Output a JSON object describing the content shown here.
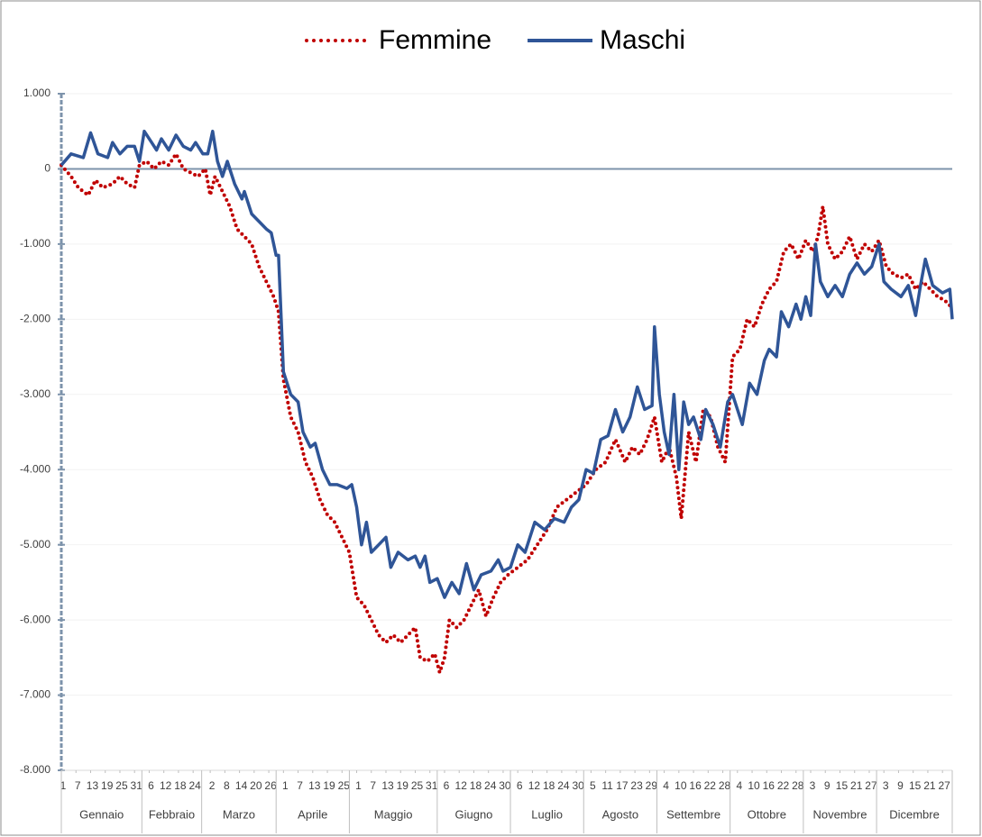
{
  "chart_data": {
    "type": "line",
    "legend": "top",
    "ylim": [
      -8000,
      1000
    ],
    "yticks": [
      {
        "value": 1000,
        "label": "1.000"
      },
      0,
      {
        "value": -1000,
        "label": "-1.000"
      },
      {
        "value": -2000,
        "label": "-2.000"
      },
      {
        "value": -3000,
        "label": "-3.000"
      },
      {
        "value": -4000,
        "label": "-4.000"
      },
      {
        "value": -5000,
        "label": "-5.000"
      },
      {
        "value": -6000,
        "label": "-6.000"
      },
      {
        "value": -7000,
        "label": "-7.000"
      },
      {
        "value": -8000,
        "label": "-8.000"
      }
    ],
    "xlim": [
      1,
      366
    ],
    "xtick_groups": [
      {
        "month": "Gennaio",
        "ticks": [
          {
            "value": 1,
            "label": "1"
          },
          {
            "value": 7,
            "label": "7"
          },
          {
            "value": 13,
            "label": "13"
          },
          {
            "value": 19,
            "label": "19"
          },
          {
            "value": 25,
            "label": "25"
          },
          {
            "value": 31,
            "label": "31"
          }
        ]
      },
      {
        "month": "Febbraio",
        "ticks": [
          {
            "value": 37,
            "label": "6"
          },
          {
            "value": 43,
            "label": "12"
          },
          {
            "value": 49,
            "label": "18"
          },
          {
            "value": 55,
            "label": "24"
          }
        ]
      },
      {
        "month": "Marzo",
        "ticks": [
          {
            "value": 62,
            "label": "2"
          },
          {
            "value": 68,
            "label": "8"
          },
          {
            "value": 74,
            "label": "14"
          },
          {
            "value": 80,
            "label": "20"
          },
          {
            "value": 86,
            "label": "26"
          }
        ]
      },
      {
        "month": "Aprile",
        "ticks": [
          {
            "value": 92,
            "label": "1"
          },
          {
            "value": 98,
            "label": "7"
          },
          {
            "value": 104,
            "label": "13"
          },
          {
            "value": 110,
            "label": "19"
          },
          {
            "value": 116,
            "label": "25"
          }
        ]
      },
      {
        "month": "Maggio",
        "ticks": [
          {
            "value": 122,
            "label": "1"
          },
          {
            "value": 128,
            "label": "7"
          },
          {
            "value": 134,
            "label": "13"
          },
          {
            "value": 140,
            "label": "19"
          },
          {
            "value": 146,
            "label": "25"
          },
          {
            "value": 152,
            "label": "31"
          }
        ]
      },
      {
        "month": "Giugno",
        "ticks": [
          {
            "value": 158,
            "label": "6"
          },
          {
            "value": 164,
            "label": "12"
          },
          {
            "value": 170,
            "label": "18"
          },
          {
            "value": 176,
            "label": "24"
          },
          {
            "value": 182,
            "label": "30"
          }
        ]
      },
      {
        "month": "Luglio",
        "ticks": [
          {
            "value": 188,
            "label": "6"
          },
          {
            "value": 194,
            "label": "12"
          },
          {
            "value": 200,
            "label": "18"
          },
          {
            "value": 206,
            "label": "24"
          },
          {
            "value": 212,
            "label": "30"
          }
        ]
      },
      {
        "month": "Agosto",
        "ticks": [
          {
            "value": 218,
            "label": "5"
          },
          {
            "value": 224,
            "label": "11"
          },
          {
            "value": 230,
            "label": "17"
          },
          {
            "value": 236,
            "label": "23"
          },
          {
            "value": 242,
            "label": "29"
          }
        ]
      },
      {
        "month": "Settembre",
        "ticks": [
          {
            "value": 248,
            "label": "4"
          },
          {
            "value": 254,
            "label": "10"
          },
          {
            "value": 260,
            "label": "16"
          },
          {
            "value": 266,
            "label": "22"
          },
          {
            "value": 272,
            "label": "28"
          }
        ]
      },
      {
        "month": "Ottobre",
        "ticks": [
          {
            "value": 278,
            "label": "4"
          },
          {
            "value": 284,
            "label": "10"
          },
          {
            "value": 290,
            "label": "16"
          },
          {
            "value": 296,
            "label": "22"
          },
          {
            "value": 302,
            "label": "28"
          }
        ]
      },
      {
        "month": "Novembre",
        "ticks": [
          {
            "value": 308,
            "label": "3"
          },
          {
            "value": 314,
            "label": "9"
          },
          {
            "value": 320,
            "label": "15"
          },
          {
            "value": 326,
            "label": "21"
          },
          {
            "value": 332,
            "label": "27"
          }
        ]
      },
      {
        "month": "Dicembre",
        "ticks": [
          {
            "value": 338,
            "label": "3"
          },
          {
            "value": 344,
            "label": "9"
          },
          {
            "value": 350,
            "label": "15"
          },
          {
            "value": 356,
            "label": "21"
          },
          {
            "value": 362,
            "label": "27"
          }
        ]
      }
    ],
    "series": [
      {
        "name": "Femmine",
        "color": "#c00000",
        "style": "dotted",
        "x": [
          1,
          5,
          8,
          12,
          15,
          18,
          22,
          25,
          28,
          31,
          33,
          36,
          39,
          42,
          45,
          48,
          51,
          54,
          57,
          60,
          62,
          64,
          67,
          70,
          73,
          76,
          79,
          82,
          85,
          88,
          90,
          92,
          95,
          98,
          101,
          104,
          107,
          110,
          113,
          116,
          119,
          122,
          125,
          128,
          131,
          134,
          137,
          140,
          143,
          146,
          148,
          151,
          154,
          156,
          158,
          160,
          163,
          166,
          169,
          172,
          175,
          178,
          181,
          184,
          188,
          192,
          196,
          200,
          204,
          208,
          212,
          216,
          220,
          224,
          228,
          232,
          235,
          238,
          241,
          244,
          247,
          250,
          253,
          255,
          258,
          261,
          264,
          267,
          270,
          273,
          276,
          279,
          282,
          285,
          288,
          291,
          294,
          297,
          300,
          303,
          306,
          309,
          311,
          313,
          315,
          318,
          321,
          324,
          327,
          330,
          333,
          336,
          339,
          342,
          345,
          348,
          351,
          354,
          357,
          360,
          363,
          366
        ],
        "values": [
          50,
          -100,
          -250,
          -350,
          -150,
          -250,
          -200,
          -100,
          -200,
          -250,
          50,
          100,
          0,
          100,
          50,
          200,
          0,
          -50,
          -100,
          0,
          -350,
          -100,
          -300,
          -500,
          -800,
          -900,
          -1000,
          -1300,
          -1500,
          -1700,
          -1900,
          -2800,
          -3300,
          -3500,
          -3900,
          -4100,
          -4400,
          -4600,
          -4700,
          -4900,
          -5100,
          -5700,
          -5800,
          -6000,
          -6200,
          -6300,
          -6200,
          -6300,
          -6200,
          -6100,
          -6500,
          -6550,
          -6450,
          -6700,
          -6500,
          -6000,
          -6100,
          -6000,
          -5800,
          -5600,
          -5950,
          -5700,
          -5500,
          -5400,
          -5300,
          -5200,
          -5000,
          -4800,
          -4500,
          -4400,
          -4300,
          -4200,
          -4000,
          -3900,
          -3600,
          -3900,
          -3700,
          -3800,
          -3600,
          -3300,
          -3900,
          -3700,
          -4100,
          -4650,
          -3500,
          -3900,
          -3200,
          -3300,
          -3700,
          -3900,
          -2500,
          -2400,
          -2000,
          -2100,
          -1800,
          -1600,
          -1500,
          -1100,
          -1000,
          -1200,
          -950,
          -1100,
          -900,
          -500,
          -1000,
          -1200,
          -1100,
          -900,
          -1200,
          -1000,
          -1100,
          -950,
          -1300,
          -1400,
          -1450,
          -1400,
          -1600,
          -1500,
          -1600,
          -1700,
          -1750,
          -1850
        ]
      },
      {
        "name": "Maschi",
        "color": "#2f5597",
        "style": "solid",
        "x": [
          1,
          5,
          10,
          13,
          16,
          20,
          22,
          25,
          28,
          31,
          33,
          35,
          38,
          40,
          42,
          45,
          48,
          51,
          54,
          56,
          59,
          61,
          63,
          65,
          67,
          69,
          72,
          75,
          76,
          79,
          82,
          85,
          87,
          89,
          90,
          92,
          95,
          98,
          100,
          103,
          105,
          108,
          111,
          114,
          118,
          120,
          122,
          124,
          126,
          128,
          131,
          134,
          136,
          139,
          143,
          146,
          148,
          150,
          152,
          155,
          158,
          161,
          164,
          167,
          170,
          173,
          177,
          180,
          182,
          185,
          188,
          191,
          195,
          199,
          203,
          207,
          210,
          213,
          216,
          219,
          222,
          225,
          228,
          231,
          234,
          237,
          240,
          243,
          244,
          246,
          248,
          250,
          252,
          254,
          256,
          258,
          260,
          263,
          265,
          268,
          271,
          274,
          276,
          278,
          280,
          283,
          286,
          289,
          291,
          294,
          296,
          299,
          302,
          304,
          306,
          308,
          310,
          312,
          315,
          318,
          321,
          324,
          327,
          330,
          333,
          336,
          338,
          341,
          345,
          348,
          351,
          353,
          355,
          358,
          362,
          365,
          366
        ],
        "values": [
          50,
          200,
          150,
          480,
          200,
          150,
          350,
          200,
          300,
          300,
          100,
          500,
          350,
          250,
          400,
          250,
          450,
          300,
          250,
          350,
          200,
          200,
          500,
          100,
          -100,
          100,
          -200,
          -400,
          -300,
          -600,
          -700,
          -800,
          -850,
          -1150,
          -1150,
          -2700,
          -3000,
          -3100,
          -3500,
          -3700,
          -3650,
          -4000,
          -4200,
          -4200,
          -4250,
          -4200,
          -4500,
          -5000,
          -4700,
          -5100,
          -5000,
          -4900,
          -5300,
          -5100,
          -5200,
          -5150,
          -5300,
          -5150,
          -5500,
          -5450,
          -5700,
          -5500,
          -5650,
          -5250,
          -5600,
          -5400,
          -5350,
          -5200,
          -5350,
          -5300,
          -5000,
          -5100,
          -4700,
          -4800,
          -4650,
          -4700,
          -4500,
          -4400,
          -4000,
          -4050,
          -3600,
          -3550,
          -3200,
          -3500,
          -3300,
          -2900,
          -3200,
          -3150,
          -2100,
          -3000,
          -3500,
          -3800,
          -3000,
          -4000,
          -3100,
          -3400,
          -3300,
          -3600,
          -3200,
          -3400,
          -3700,
          -3100,
          -3000,
          -3200,
          -3400,
          -2850,
          -3000,
          -2550,
          -2400,
          -2500,
          -1900,
          -2100,
          -1800,
          -2000,
          -1700,
          -1950,
          -1000,
          -1500,
          -1700,
          -1550,
          -1700,
          -1400,
          -1250,
          -1400,
          -1300,
          -1000,
          -1500,
          -1600,
          -1700,
          -1550,
          -1950,
          -1550,
          -1200,
          -1550,
          -1650,
          -1600,
          -2000
        ]
      }
    ]
  }
}
